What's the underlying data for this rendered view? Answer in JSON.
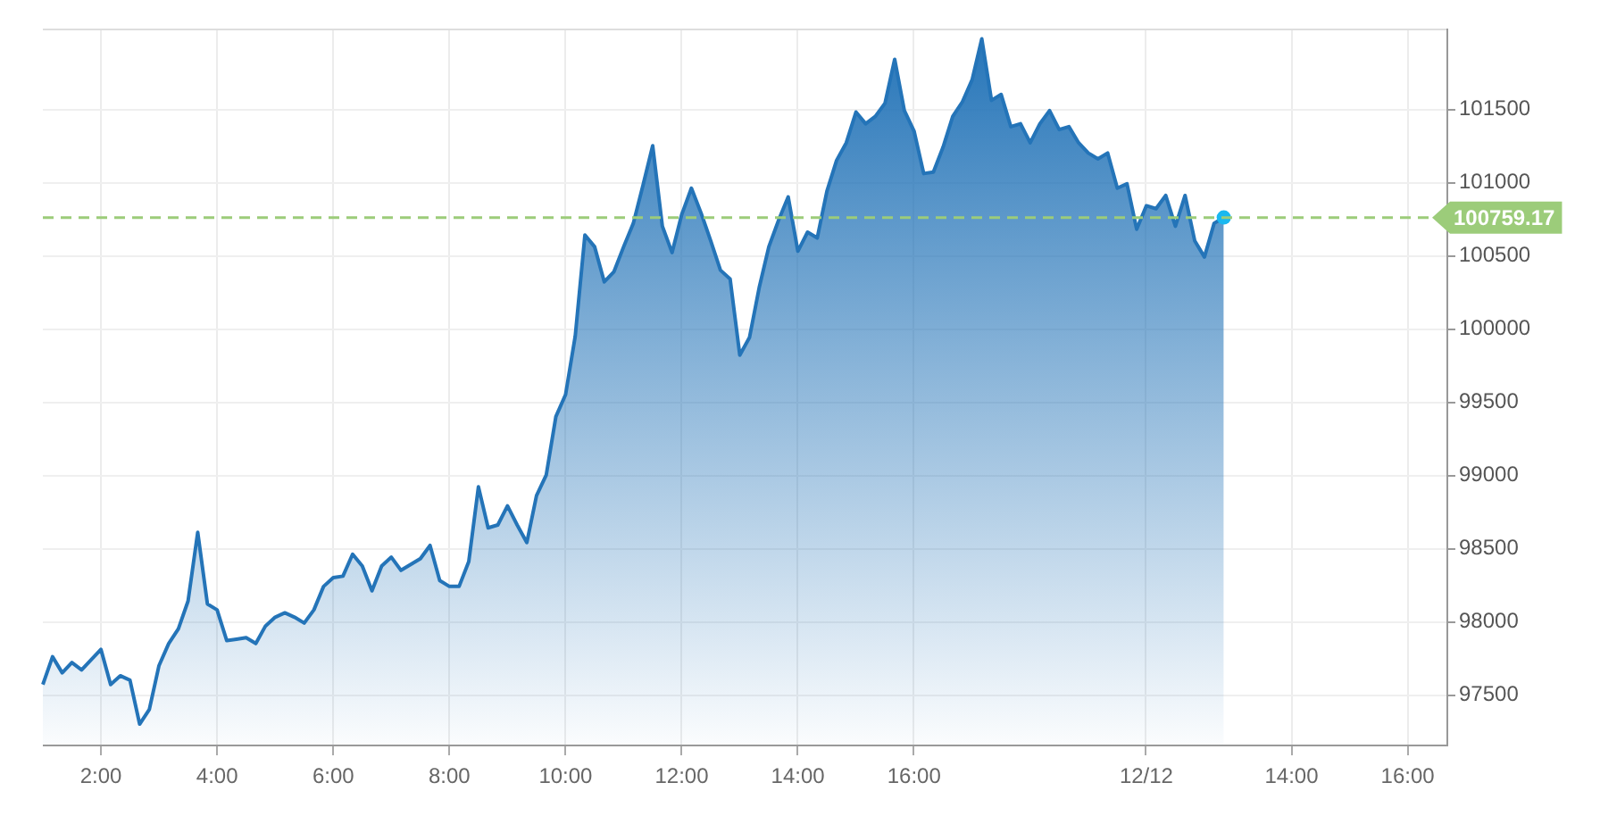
{
  "chart_data": {
    "type": "area",
    "color": "#2474b8",
    "categories": [
      null,
      null,
      null,
      null,
      null,
      null,
      "2:00",
      null,
      null,
      null,
      null,
      null,
      null,
      null,
      null,
      null,
      null,
      null,
      "4:00",
      null,
      null,
      null,
      null,
      null,
      null,
      null,
      null,
      null,
      null,
      null,
      "6:00",
      null,
      null,
      null,
      null,
      null,
      null,
      null,
      null,
      null,
      null,
      null,
      "8:00",
      null,
      null,
      null,
      null,
      null,
      null,
      null,
      null,
      null,
      null,
      null,
      "10:00",
      null,
      null,
      null,
      null,
      null,
      null,
      null,
      null,
      null,
      null,
      null,
      "12:00",
      null,
      null,
      null,
      null,
      null,
      null,
      null,
      null,
      null,
      null,
      null,
      "14:00",
      null,
      null,
      null,
      null,
      null,
      null,
      null,
      null,
      null,
      null,
      null,
      "16:00",
      null,
      null,
      null,
      null,
      null,
      null,
      null,
      null,
      null,
      null,
      null,
      null,
      null,
      null,
      null,
      null,
      null,
      null,
      null,
      null,
      null,
      null,
      null,
      "12/12",
      null,
      null,
      null,
      null,
      null,
      null,
      null,
      null,
      null,
      null,
      null,
      null,
      null,
      null,
      "14:00",
      null,
      null,
      null,
      null,
      null,
      null,
      null,
      null,
      null,
      null,
      null,
      "16:00",
      null,
      null,
      null,
      null
    ],
    "values": [
      97570,
      97760,
      97650,
      97720,
      97670,
      97740,
      97810,
      97570,
      97630,
      97600,
      97300,
      97400,
      97700,
      97850,
      97950,
      98140,
      98610,
      98120,
      98080,
      97870,
      97880,
      97890,
      97850,
      97970,
      98030,
      98060,
      98030,
      97990,
      98080,
      98240,
      98300,
      98310,
      98460,
      98380,
      98210,
      98380,
      98440,
      98350,
      98390,
      98430,
      98520,
      98280,
      98240,
      98240,
      98410,
      98920,
      98640,
      98660,
      98790,
      98660,
      98540,
      98860,
      99000,
      99400,
      99550,
      99950,
      100640,
      100560,
      100320,
      100390,
      100560,
      100720,
      100980,
      101250,
      100700,
      100520,
      100780,
      100960,
      100790,
      100600,
      100400,
      100340,
      99820,
      99940,
      100280,
      100560,
      100740,
      100900,
      100530,
      100660,
      100620,
      100940,
      101150,
      101270,
      101480,
      101400,
      101450,
      101540,
      101840,
      101490,
      101350,
      101060,
      101070,
      101240,
      101450,
      101550,
      101700,
      101980,
      101560,
      101600,
      101380,
      101400,
      101270,
      101400,
      101490,
      101360,
      101380,
      101270,
      101200,
      101160,
      101200,
      100960,
      100990,
      100680,
      100840,
      100820,
      100910,
      100700,
      100910,
      100600,
      100490,
      100720,
      100760,
      null,
      null,
      null,
      null,
      null,
      null,
      null,
      null,
      null,
      null,
      null,
      null,
      null,
      null,
      null,
      null,
      null,
      null,
      null,
      null,
      null,
      null,
      null
    ],
    "ylim": [
      97160,
      102050
    ],
    "yticks": [
      97500,
      98000,
      98500,
      99000,
      99500,
      100000,
      100500,
      101000,
      101500
    ],
    "grid": true,
    "ref_lines": [
      {
        "axis": "y",
        "value": 100759.17,
        "label": "100759.17",
        "color": "#9ccc7a",
        "line_style": "dashed"
      }
    ]
  }
}
